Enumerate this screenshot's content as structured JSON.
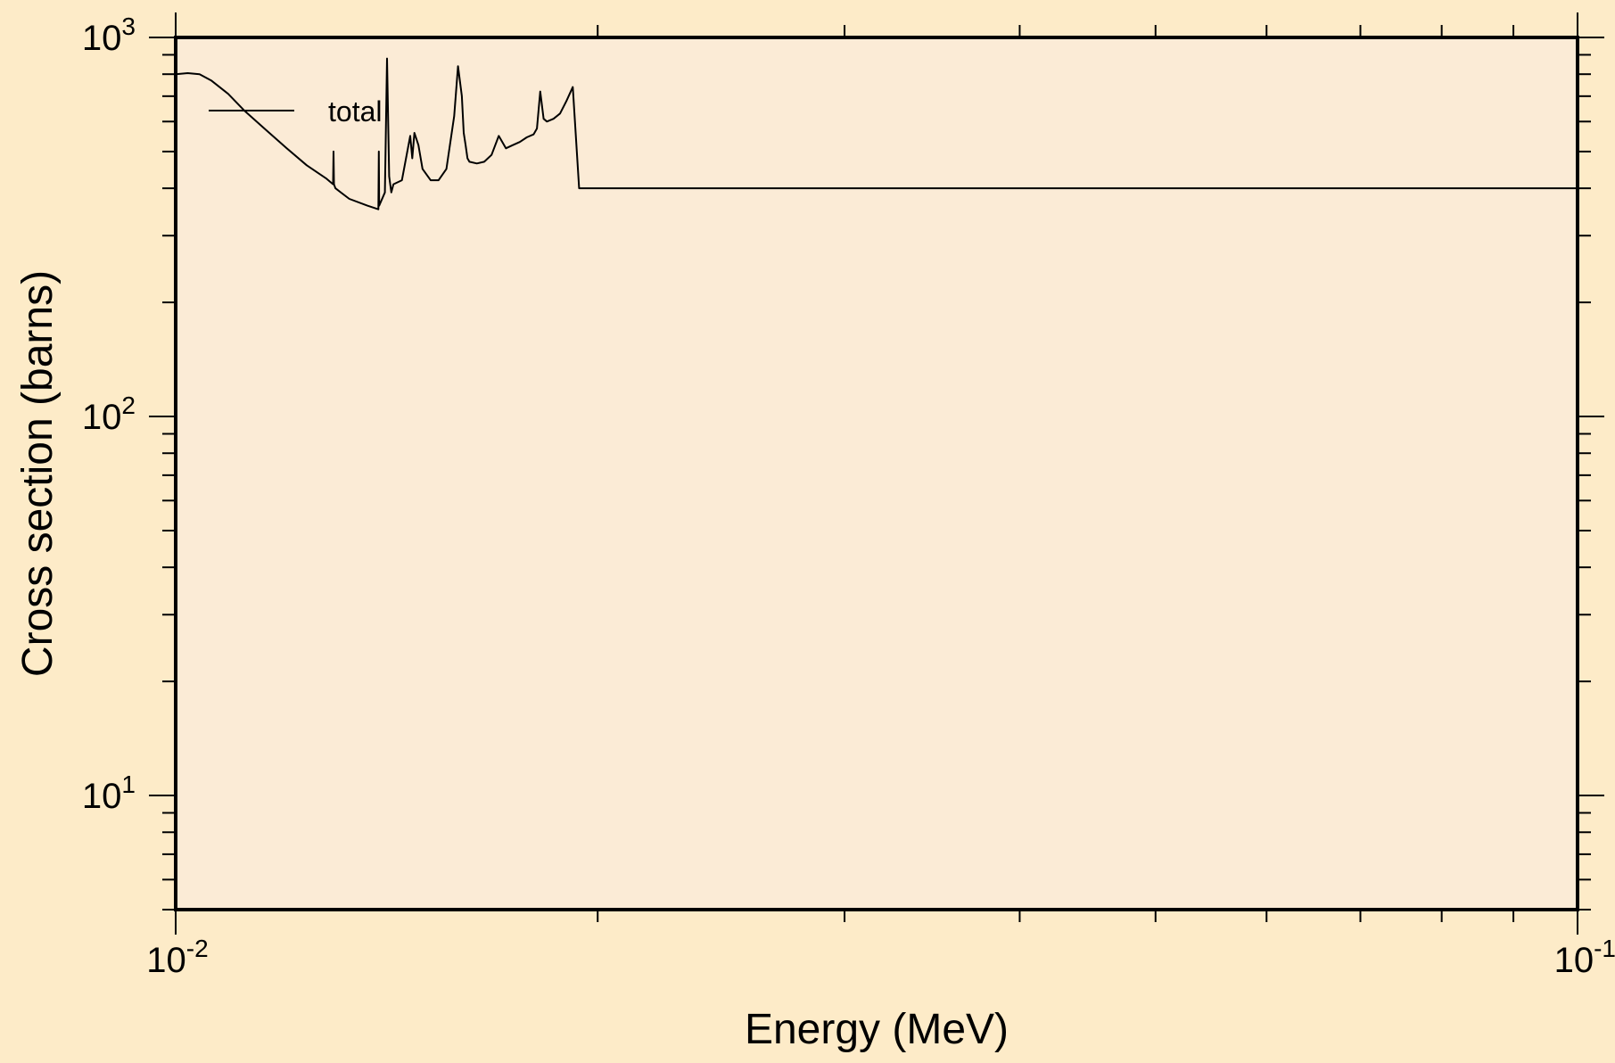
{
  "colors": {
    "page_background": "#fdebc8",
    "plot_background": "#fbebd6",
    "line": "#000000"
  },
  "chart_data": {
    "type": "line",
    "title": "",
    "xlabel": "Energy (MeV)",
    "ylabel": "Cross section (barns)",
    "xscale": "log",
    "yscale": "log",
    "xlim": [
      0.01,
      0.1
    ],
    "ylim": [
      5,
      1000
    ],
    "x_tick_labels": [
      {
        "value": 0.01,
        "base": "10",
        "exp": "-2"
      },
      {
        "value": 0.1,
        "base": "10",
        "exp": "-1"
      }
    ],
    "y_tick_labels": [
      {
        "value": 10,
        "base": "10",
        "exp": "1"
      },
      {
        "value": 100,
        "base": "10",
        "exp": "2"
      },
      {
        "value": 1000,
        "base": "10",
        "exp": "3"
      }
    ],
    "grid": false,
    "legend_position": "top-left",
    "series": [
      {
        "name": "total",
        "x": [
          0.01,
          0.0102,
          0.0104,
          0.0106,
          0.0109,
          0.0112,
          0.0116,
          0.012,
          0.0124,
          0.0128,
          0.01295,
          0.01296,
          0.01297,
          0.013,
          0.0133,
          0.0137,
          0.01395,
          0.01396,
          0.01397,
          0.0141,
          0.01415,
          0.0142,
          0.01425,
          0.0143,
          0.0145,
          0.0147,
          0.01475,
          0.0148,
          0.0149,
          0.015,
          0.0152,
          0.0154,
          0.0156,
          0.0158,
          0.0159,
          0.016,
          0.01605,
          0.0161,
          0.01615,
          0.0162,
          0.0164,
          0.0166,
          0.0168,
          0.017,
          0.0172,
          0.0174,
          0.0176,
          0.0178,
          0.018,
          0.0181,
          0.0182,
          0.0183,
          0.0184,
          0.0186,
          0.0188,
          0.019,
          0.0192,
          0.0194,
          0.0196,
          0.0197,
          0.0198,
          0.0199,
          0.02,
          0.0202,
          0.0204,
          0.0206,
          0.0208,
          0.021,
          0.0211,
          0.0212,
          0.0212,
          0.0213,
          0.025,
          0.03,
          0.035,
          0.04,
          0.05,
          0.06,
          0.07,
          0.08,
          0.1
        ],
        "y": [
          800,
          805,
          800,
          770,
          710,
          640,
          570,
          510,
          460,
          425,
          410,
          500,
          410,
          400,
          375,
          360,
          352,
          500,
          360,
          390,
          880,
          430,
          390,
          410,
          420,
          550,
          480,
          560,
          520,
          450,
          420,
          420,
          450,
          620,
          840,
          700,
          560,
          520,
          480,
          470,
          465,
          470,
          490,
          550,
          510,
          520,
          530,
          545,
          555,
          575,
          720,
          610,
          600,
          610,
          630,
          680,
          740,
          400,
          400,
          400,
          400,
          400,
          400,
          400,
          400,
          400,
          400,
          400,
          400,
          400,
          400,
          400,
          400,
          400,
          400,
          400,
          400,
          400,
          400,
          400,
          400
        ]
      }
    ]
  }
}
